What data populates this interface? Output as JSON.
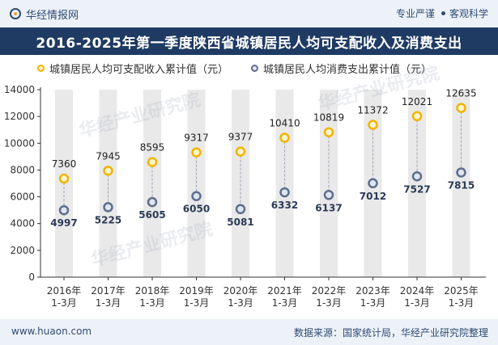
{
  "header": {
    "brand": "华经情报网",
    "tag_left": "专业严谨",
    "tag_right": "客观科学"
  },
  "title": "2016-2025年第一季度陕西省城镇居民人均可支配收入及消费支出",
  "legend": {
    "income": "城镇居民人均可支配收入累计值（元）",
    "spend": "城镇居民人均消费支出累计值（元）"
  },
  "footer": {
    "site": "www.huaon.com",
    "source": "数据来源：国家统计局，华经产业研究院整理"
  },
  "watermark": "华经产业研究院",
  "colors": {
    "income": "#f2b400",
    "income_fill": "#fff6cf",
    "spend": "#5d6e8c",
    "spend_fill": "#dfe6f1",
    "band": "#e9e9e9",
    "title_bg": "#1f3a63"
  },
  "chart_data": {
    "type": "line",
    "categories": [
      [
        "2016年",
        "1-3月"
      ],
      [
        "2017年",
        "1-3月"
      ],
      [
        "2018年",
        "1-3月"
      ],
      [
        "2019年",
        "1-3月"
      ],
      [
        "2020年",
        "1-3月"
      ],
      [
        "2021年",
        "1-3月"
      ],
      [
        "2022年",
        "1-3月"
      ],
      [
        "2023年",
        "1-3月"
      ],
      [
        "2024年",
        "1-3月"
      ],
      [
        "2025年",
        "1-3月"
      ]
    ],
    "series": [
      {
        "name": "城镇居民人均可支配收入累计值（元）",
        "values": [
          7360,
          7945,
          8595,
          9317,
          9377,
          10410,
          10819,
          11372,
          12021,
          12635
        ]
      },
      {
        "name": "城镇居民人均消费支出累计值（元）",
        "values": [
          4997,
          5225,
          5605,
          6050,
          5081,
          6332,
          6137,
          7012,
          7527,
          7815
        ]
      }
    ],
    "yticks": [
      0,
      2000,
      4000,
      6000,
      8000,
      10000,
      12000,
      14000
    ],
    "ylim": [
      0,
      14000
    ],
    "grid": false,
    "legend_position": "top-left"
  }
}
